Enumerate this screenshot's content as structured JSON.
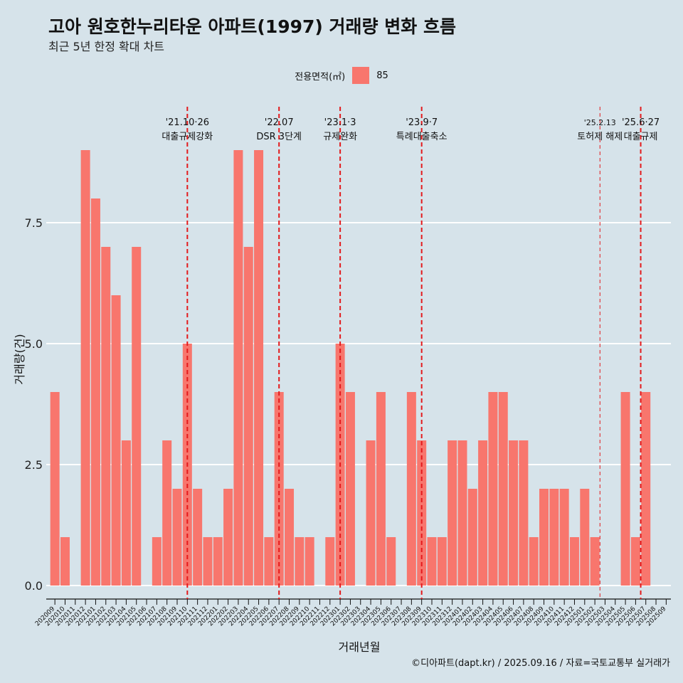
{
  "chart_data": {
    "type": "bar",
    "title": "고아 원호한누리타운 아파트(1997) 거래량 변화 흐름",
    "subtitle": "최근 5년 한정 확대 차트",
    "xlabel": "거래년월",
    "ylabel": "거래량(건)",
    "ylim": [
      0,
      9
    ],
    "yticks": [
      0.0,
      2.5,
      5.0,
      7.5
    ],
    "ytick_labels": [
      "0.0",
      "2.5",
      "5.0",
      "7.5"
    ],
    "grid": "horizontal major",
    "legend": {
      "title": "전용면적(㎡)",
      "position": "top",
      "items": [
        {
          "name": "85",
          "color": "#f8766d"
        }
      ]
    },
    "categories": [
      "202009",
      "202010",
      "202011",
      "202012",
      "202101",
      "202102",
      "202103",
      "202104",
      "202105",
      "202106",
      "202107",
      "202108",
      "202109",
      "202110",
      "202111",
      "202112",
      "202201",
      "202202",
      "202203",
      "202204",
      "202205",
      "202206",
      "202207",
      "202208",
      "202209",
      "202210",
      "202211",
      "202212",
      "202301",
      "202302",
      "202303",
      "202304",
      "202305",
      "202306",
      "202307",
      "202308",
      "202309",
      "202310",
      "202311",
      "202312",
      "202401",
      "202402",
      "202403",
      "202404",
      "202405",
      "202406",
      "202407",
      "202408",
      "202409",
      "202410",
      "202411",
      "202412",
      "202501",
      "202502",
      "202503",
      "202504",
      "202505",
      "202506",
      "202507",
      "202508",
      "202509"
    ],
    "series": [
      {
        "name": "85",
        "color": "#f8766d",
        "values": [
          4,
          1,
          0,
          9,
          8,
          7,
          6,
          3,
          7,
          0,
          1,
          3,
          2,
          5,
          2,
          1,
          1,
          2,
          9,
          7,
          9,
          1,
          4,
          2,
          1,
          1,
          0,
          1,
          5,
          4,
          0,
          3,
          4,
          1,
          0,
          4,
          3,
          1,
          1,
          3,
          3,
          2,
          3,
          4,
          4,
          3,
          3,
          1,
          2,
          2,
          2,
          1,
          2,
          1,
          0,
          0,
          4,
          1,
          4,
          null,
          null
        ]
      }
    ],
    "annotations": [
      {
        "position": 13,
        "date": "'21.10·26",
        "label": "대출규제강화",
        "style": "thick"
      },
      {
        "position": 22,
        "date": "'22.07",
        "label": "DSR 3단계",
        "style": "thick"
      },
      {
        "position": 28,
        "date": "'23.1·3",
        "label": "규제완화",
        "style": "thick"
      },
      {
        "position": 36,
        "date": "'23.9·7",
        "label": "특례대출축소",
        "style": "thick"
      },
      {
        "position": 53.5,
        "date": "'25.2.13",
        "label": "토허제 해제",
        "style": "thin"
      },
      {
        "position": 57.5,
        "date": "'25.6·27",
        "label": "대출규제",
        "style": "thick"
      }
    ]
  },
  "caption": "©디아파트(dapt.kr) / 2025.09.16 / 자료=국토교통부 실거래가",
  "colors": {
    "background": "#d6e3ea",
    "bar": "#f8766d",
    "vline": "#e31a1c",
    "grid": "#ffffff"
  }
}
